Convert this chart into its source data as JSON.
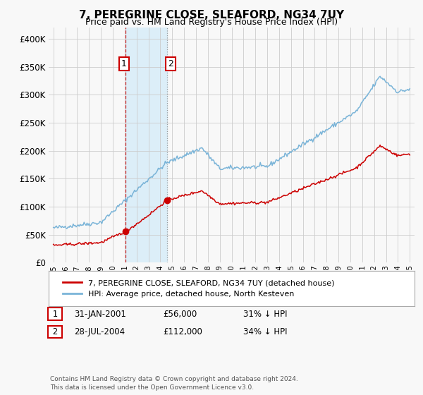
{
  "title": "7, PEREGRINE CLOSE, SLEAFORD, NG34 7UY",
  "subtitle": "Price paid vs. HM Land Registry's House Price Index (HPI)",
  "ylim": [
    0,
    420000
  ],
  "yticks": [
    0,
    50000,
    100000,
    150000,
    200000,
    250000,
    300000,
    350000,
    400000
  ],
  "xlim_left": 1994.6,
  "xlim_right": 2025.4,
  "sale1_date": 2001.08,
  "sale1_price": 56000,
  "sale2_date": 2004.57,
  "sale2_price": 112000,
  "legend_line1": "7, PEREGRINE CLOSE, SLEAFORD, NG34 7UY (detached house)",
  "legend_line2": "HPI: Average price, detached house, North Kesteven",
  "footnote": "Contains HM Land Registry data © Crown copyright and database right 2024.\nThis data is licensed under the Open Government Licence v3.0.",
  "hpi_color": "#7ab4d8",
  "price_color": "#cc0000",
  "shading_color": "#dceef8",
  "background_color": "#f8f8f8"
}
